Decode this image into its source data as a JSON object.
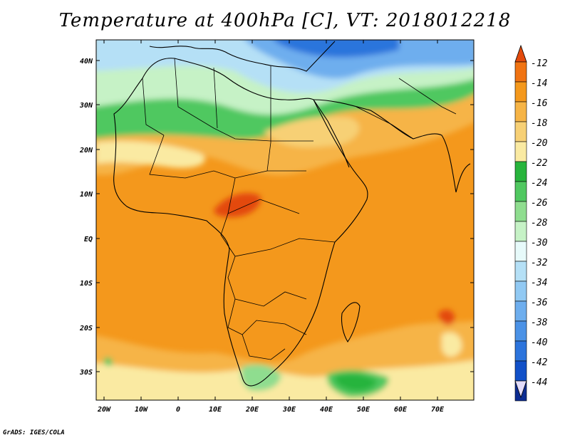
{
  "title": "Temperature at 400hPa [C], VT: 2018012218",
  "credit": "GrADS: IGES/COLA",
  "lat_labels": [
    "40N",
    "30N",
    "20N",
    "10N",
    "EQ",
    "10S",
    "20S",
    "30S"
  ],
  "lon_labels": [
    "20W",
    "10W",
    "0",
    "10E",
    "20E",
    "30E",
    "40E",
    "50E",
    "60E",
    "70E"
  ],
  "colorbar": {
    "labels": [
      "-12",
      "-14",
      "-16",
      "-18",
      "-20",
      "-22",
      "-24",
      "-26",
      "-28",
      "-30",
      "-32",
      "-34",
      "-36",
      "-38",
      "-40",
      "-42",
      "-44"
    ],
    "colors": [
      "#e34a0c",
      "#f07312",
      "#f4981c",
      "#f6b446",
      "#f7d075",
      "#faeaa2",
      "#28b43c",
      "#50c860",
      "#8fdd8f",
      "#c6f2c6",
      "#e7fafa",
      "#b5e0f6",
      "#91c9f3",
      "#6eaeee",
      "#4b92e6",
      "#2c74dc",
      "#1150c8",
      "#0c2c92",
      "#e2dcfa"
    ]
  }
}
